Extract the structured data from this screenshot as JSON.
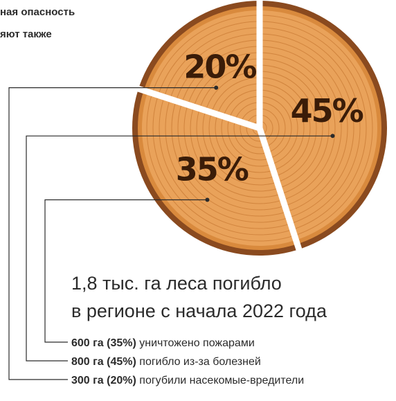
{
  "note_lines": [
    "ная опасность",
    "яют также"
  ],
  "chart_data": {
    "type": "pie",
    "values": [
      45,
      35,
      20
    ],
    "value_labels": [
      "45%",
      "35%",
      "20%"
    ],
    "color": "#e9a25a",
    "title_lines": [
      "1,8 тыс. га леса погибло",
      "в регионе с начала 2022 года"
    ],
    "legend": [
      {
        "amount": "600 га (35%)",
        "text": "уничтожено пожарами"
      },
      {
        "amount": "800 га (45%)",
        "text": "погибло из-за болезней"
      },
      {
        "amount": "300 га (20%)",
        "text": "погубили насекомые-вредители"
      }
    ]
  }
}
